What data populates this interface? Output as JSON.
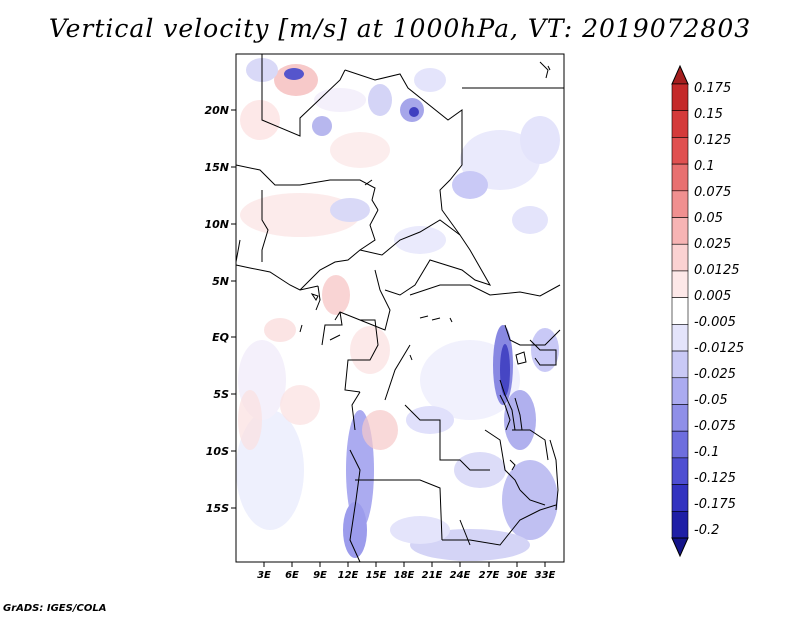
{
  "title": "Vertical velocity [m/s] at 1000hPa, VT: 2019072803",
  "credit": "GrADS: IGES/COLA",
  "map": {
    "lat_labels": [
      "20N",
      "15N",
      "10N",
      "5N",
      "EQ",
      "5S",
      "10S",
      "15S"
    ],
    "lon_labels": [
      "3E",
      "6E",
      "9E",
      "12E",
      "15E",
      "18E",
      "21E",
      "24E",
      "27E",
      "30E",
      "33E"
    ]
  },
  "colorbar": {
    "labels": [
      "0.175",
      "0.15",
      "0.125",
      "0.1",
      "0.075",
      "0.05",
      "0.025",
      "0.0125",
      "0.005",
      "-0.005",
      "-0.0125",
      "-0.025",
      "-0.05",
      "-0.075",
      "-0.1",
      "-0.125",
      "-0.175",
      "-0.2"
    ],
    "colors": [
      "#a51f1f",
      "#c42a2a",
      "#d43a3a",
      "#e05050",
      "#e87070",
      "#f09090",
      "#f7b4b4",
      "#fbd2d2",
      "#fde8e8",
      "#ffffff",
      "#e4e4fb",
      "#c9c9f6",
      "#ababf0",
      "#8f8fe8",
      "#6e6ede",
      "#4f4fd2",
      "#3333c0",
      "#1f1fa6",
      "#14148a"
    ]
  },
  "chart_data": {
    "type": "heatmap",
    "title": "Vertical velocity [m/s] at 1000hPa, VT: 2019072803",
    "variable": "Vertical velocity",
    "units": "m/s",
    "level": "1000hPa",
    "valid_time": "2019072803",
    "lon_range": [
      0,
      35
    ],
    "lat_range": [
      -20,
      24
    ],
    "contour_levels": [
      -0.2,
      -0.175,
      -0.125,
      -0.1,
      -0.075,
      -0.05,
      -0.025,
      -0.0125,
      -0.005,
      0.005,
      0.0125,
      0.025,
      0.05,
      0.075,
      0.1,
      0.125,
      0.15,
      0.175
    ]
  }
}
